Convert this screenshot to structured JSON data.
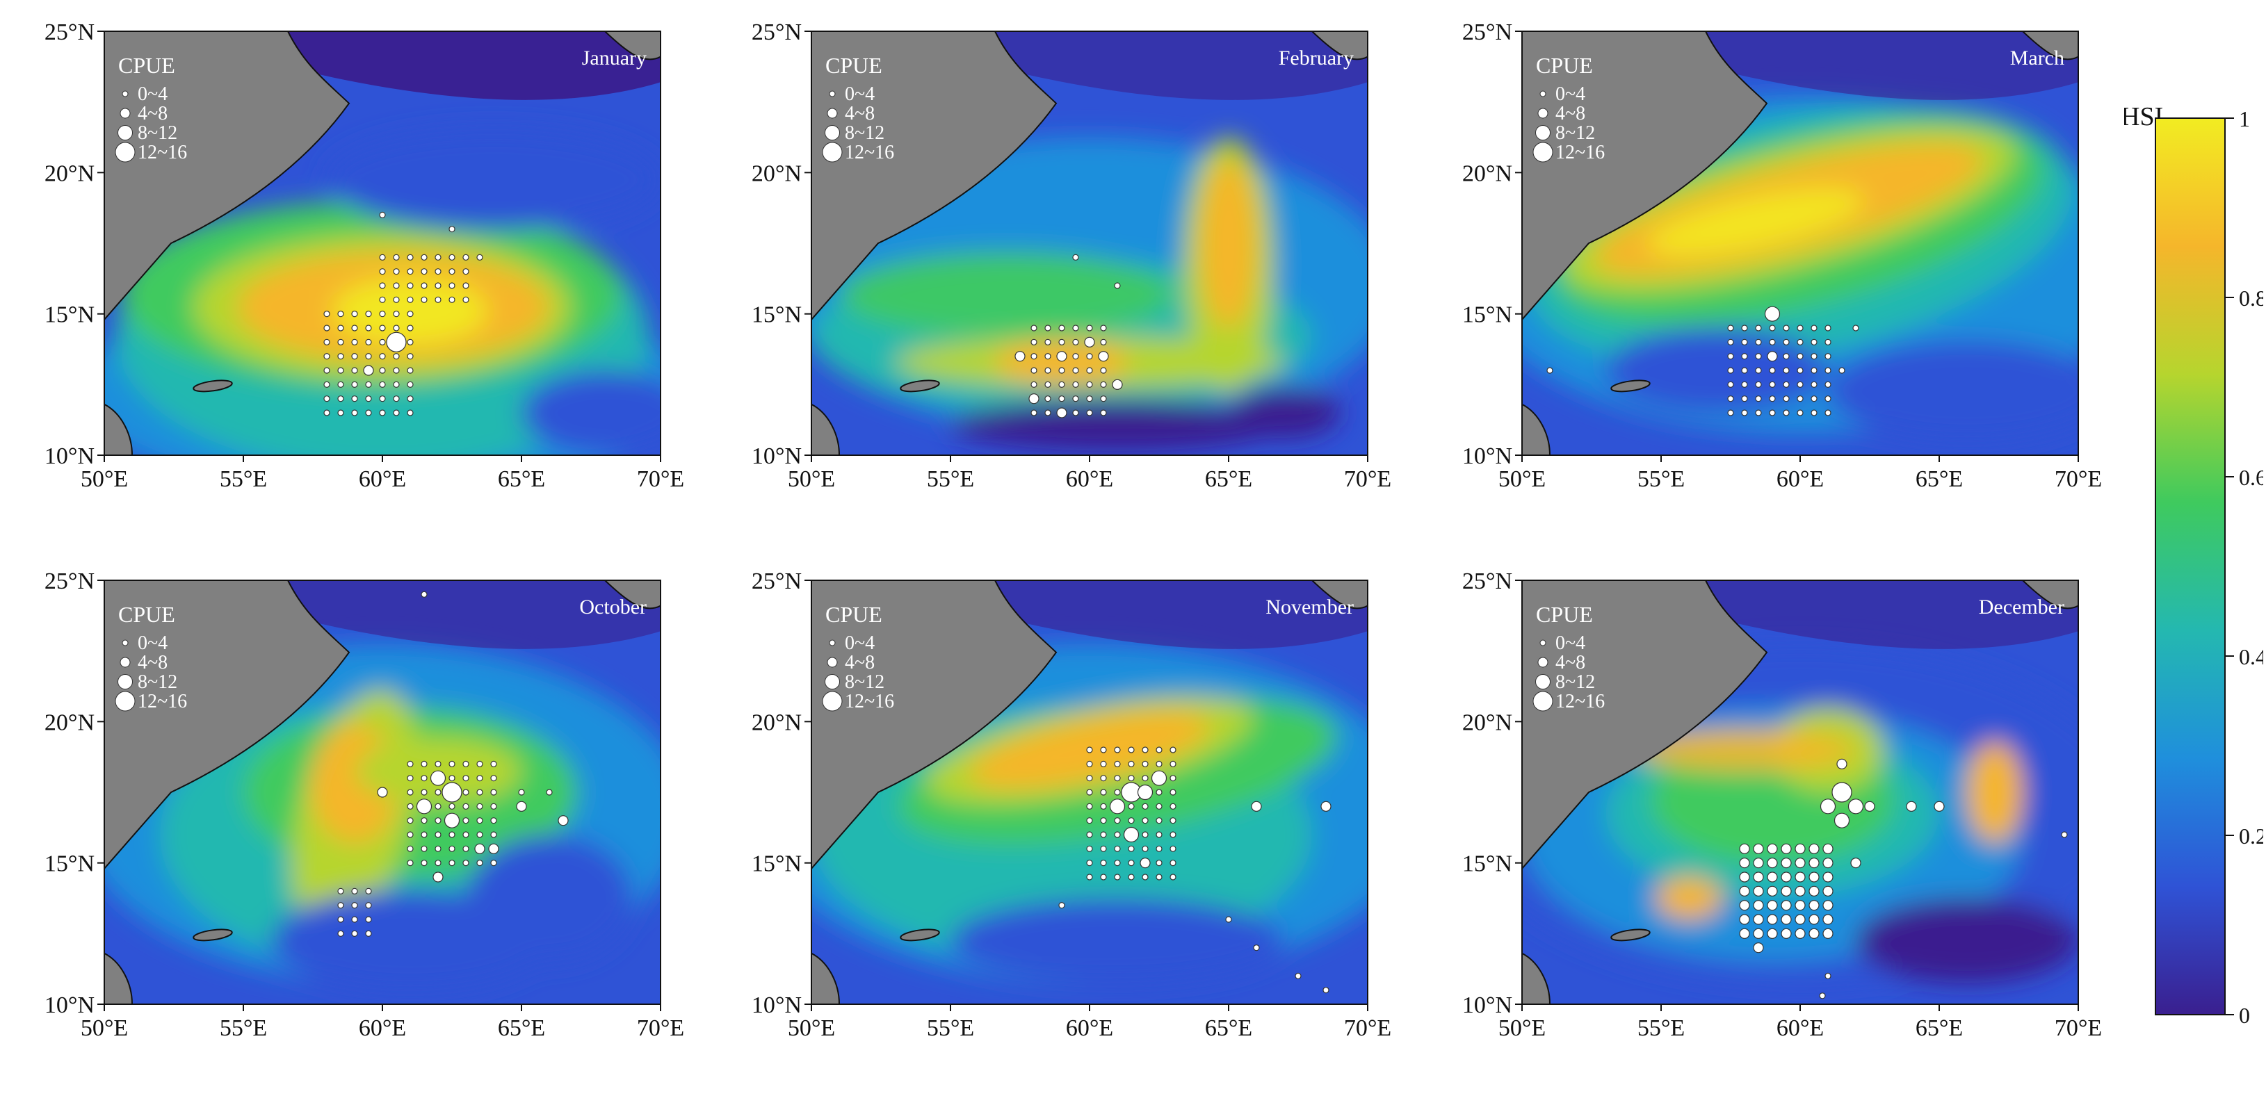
{
  "colorbar": {
    "title": "HSI",
    "ticks": [
      {
        "value": 1,
        "label": "1"
      },
      {
        "value": 0.8,
        "label": "0.8"
      },
      {
        "value": 0.6,
        "label": "0.6"
      },
      {
        "value": 0.4,
        "label": "0.4"
      },
      {
        "value": 0.2,
        "label": "0.2"
      },
      {
        "value": 0,
        "label": "0"
      }
    ],
    "colors": [
      "#3a1f8f",
      "#2f53d6",
      "#1f8fdc",
      "#24b8b0",
      "#3fca5e",
      "#b6d52e",
      "#f5b62b",
      "#f2ec22"
    ]
  },
  "axes": {
    "x_ticks": [
      "50°E",
      "55°E",
      "60°E",
      "65°E",
      "70°E"
    ],
    "y_ticks": [
      "25°N",
      "20°N",
      "15°N",
      "10°N"
    ],
    "lon_range": [
      50,
      70
    ],
    "lat_range": [
      10,
      25
    ]
  },
  "cpue_legend": {
    "title": "CPUE",
    "classes": [
      "0~4",
      "4~8",
      "8~12",
      "12~16"
    ]
  },
  "panels": [
    {
      "month": "January"
    },
    {
      "month": "February"
    },
    {
      "month": "March"
    },
    {
      "month": "October"
    },
    {
      "month": "November"
    },
    {
      "month": "December"
    }
  ]
}
